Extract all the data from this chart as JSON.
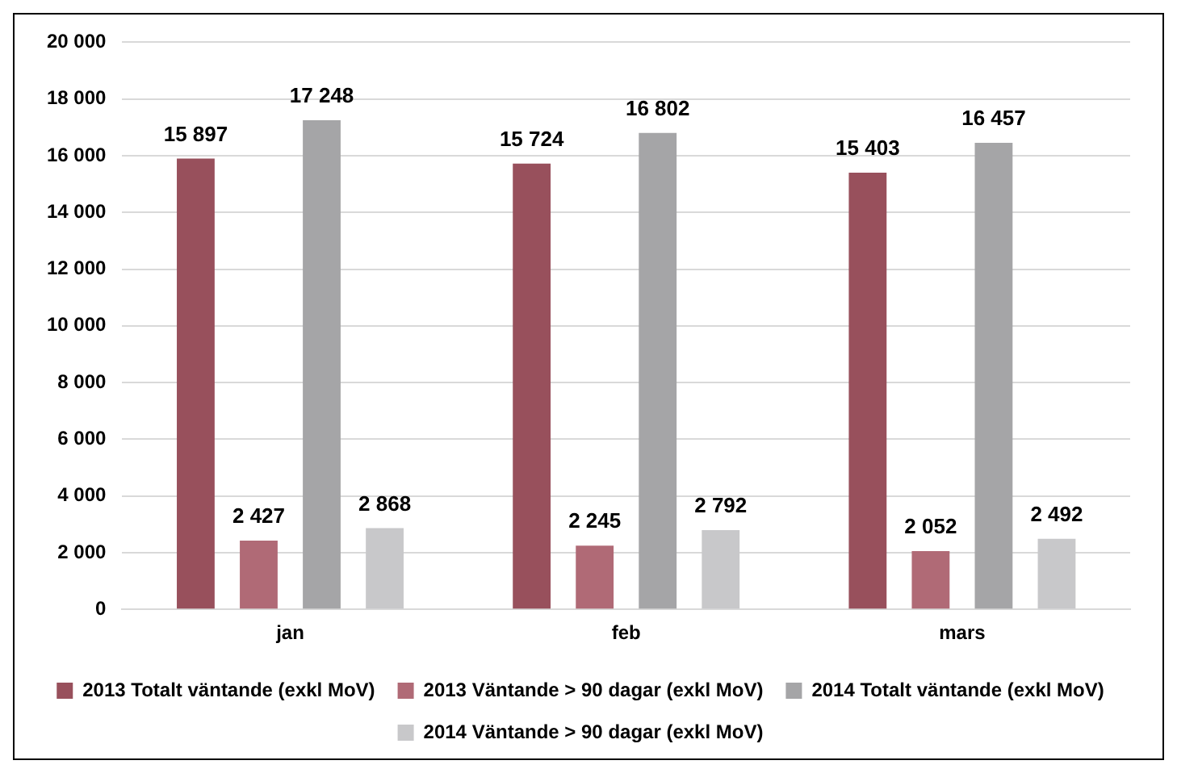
{
  "chart_data": {
    "type": "bar",
    "categories": [
      "jan",
      "feb",
      "mars"
    ],
    "series": [
      {
        "name": "2013 Totalt väntande (exkl MoV)",
        "color": "#98505c",
        "values": [
          15897,
          15724,
          15403
        ]
      },
      {
        "name": "2013 Väntande > 90 dagar (exkl MoV)",
        "color": "#b06a76",
        "values": [
          2427,
          2245,
          2052
        ]
      },
      {
        "name": "2014 Totalt väntande (exkl MoV)",
        "color": "#a5a5a7",
        "values": [
          17248,
          16802,
          16457
        ]
      },
      {
        "name": "2014 Väntande > 90 dagar (exkl MoV)",
        "color": "#c8c8ca",
        "values": [
          2868,
          2792,
          2492
        ]
      }
    ],
    "value_labels": [
      [
        "15 897",
        "15 724",
        "15 403"
      ],
      [
        "2 427",
        "2 245",
        "2 052"
      ],
      [
        "17 248",
        "16 802",
        "16 457"
      ],
      [
        "2 868",
        "2 792",
        "2 492"
      ]
    ],
    "ylim": [
      0,
      20000
    ],
    "yticks": [
      {
        "value": 0,
        "label": "0"
      },
      {
        "value": 2000,
        "label": "2 000"
      },
      {
        "value": 4000,
        "label": "4 000"
      },
      {
        "value": 6000,
        "label": "6 000"
      },
      {
        "value": 8000,
        "label": "8 000"
      },
      {
        "value": 10000,
        "label": "10 000"
      },
      {
        "value": 12000,
        "label": "12 000"
      },
      {
        "value": 14000,
        "label": "14 000"
      },
      {
        "value": 16000,
        "label": "16 000"
      },
      {
        "value": 18000,
        "label": "18 000"
      },
      {
        "value": 20000,
        "label": "20 000"
      }
    ],
    "grid": "y",
    "legend": "bottom"
  }
}
